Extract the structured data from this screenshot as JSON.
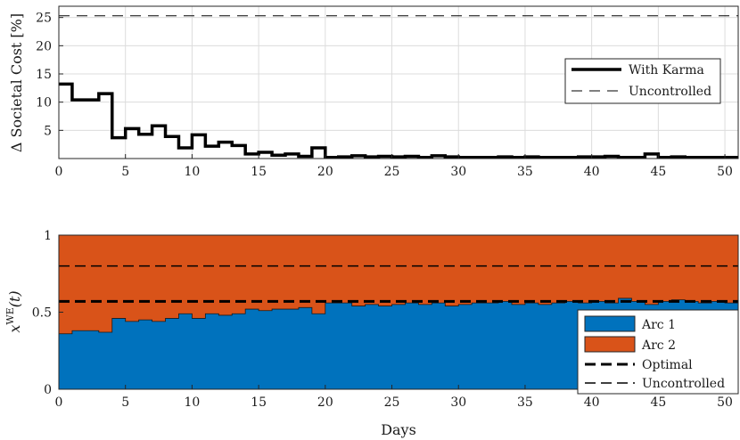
{
  "chart_data": [
    {
      "type": "line",
      "title": "",
      "xlabel": "",
      "ylabel": "Δ Societal Cost [%]",
      "xlim": [
        0,
        51
      ],
      "ylim": [
        0,
        27
      ],
      "xticks": [
        "0",
        "5",
        "10",
        "15",
        "20",
        "25",
        "30",
        "35",
        "40",
        "45",
        "50"
      ],
      "yticks": [
        "5",
        "10",
        "15",
        "20",
        "25"
      ],
      "grid": true,
      "legend_position": "right",
      "series": [
        {
          "name": "With Karma",
          "style": "step",
          "color": "#000000",
          "x": [
            0,
            1,
            2,
            3,
            4,
            5,
            6,
            7,
            8,
            9,
            10,
            11,
            12,
            13,
            14,
            15,
            16,
            17,
            18,
            19,
            20,
            21,
            22,
            23,
            24,
            25,
            26,
            27,
            28,
            29,
            30,
            31,
            32,
            33,
            34,
            35,
            36,
            37,
            38,
            39,
            40,
            41,
            42,
            43,
            44,
            45,
            46,
            47,
            48,
            49,
            50,
            51
          ],
          "values": [
            13.2,
            10.4,
            10.4,
            11.5,
            3.7,
            5.3,
            4.3,
            5.8,
            3.9,
            1.9,
            4.2,
            2.2,
            2.9,
            2.3,
            0.8,
            1.1,
            0.6,
            0.8,
            0.4,
            1.9,
            0.2,
            0.3,
            0.5,
            0.3,
            0.4,
            0.3,
            0.4,
            0.2,
            0.5,
            0.3,
            0.2,
            0.2,
            0.2,
            0.3,
            0.2,
            0.3,
            0.2,
            0.2,
            0.2,
            0.3,
            0.3,
            0.4,
            0.2,
            0.2,
            0.8,
            0.2,
            0.3,
            0.2,
            0.2,
            0.2,
            0.2,
            0.2
          ]
        },
        {
          "name": "Uncontrolled",
          "style": "hline",
          "color": "#000000",
          "value": 25.3
        }
      ]
    },
    {
      "type": "area",
      "title": "",
      "xlabel": "Days",
      "ylabel": "x^WE(t)",
      "xlim": [
        0,
        51
      ],
      "ylim": [
        0,
        1
      ],
      "xticks": [
        "0",
        "5",
        "10",
        "15",
        "20",
        "25",
        "30",
        "35",
        "40",
        "45",
        "50"
      ],
      "yticks": [
        "0",
        "0.5",
        "1"
      ],
      "grid": false,
      "legend_position": "bottom-right",
      "series": [
        {
          "name": "Arc 1",
          "color": "#0072BD",
          "x": [
            0,
            1,
            2,
            3,
            4,
            5,
            6,
            7,
            8,
            9,
            10,
            11,
            12,
            13,
            14,
            15,
            16,
            17,
            18,
            19,
            20,
            21,
            22,
            23,
            24,
            25,
            26,
            27,
            28,
            29,
            30,
            31,
            32,
            33,
            34,
            35,
            36,
            37,
            38,
            39,
            40,
            41,
            42,
            43,
            44,
            45,
            46,
            47,
            48,
            49,
            50,
            51
          ],
          "values": [
            0.36,
            0.38,
            0.38,
            0.37,
            0.46,
            0.44,
            0.45,
            0.44,
            0.46,
            0.49,
            0.46,
            0.49,
            0.48,
            0.49,
            0.52,
            0.51,
            0.52,
            0.52,
            0.53,
            0.49,
            0.56,
            0.56,
            0.54,
            0.55,
            0.54,
            0.55,
            0.56,
            0.55,
            0.56,
            0.54,
            0.55,
            0.56,
            0.56,
            0.57,
            0.55,
            0.56,
            0.55,
            0.56,
            0.57,
            0.56,
            0.57,
            0.56,
            0.59,
            0.57,
            0.55,
            0.57,
            0.58,
            0.57,
            0.56,
            0.57,
            0.56,
            0.56
          ]
        },
        {
          "name": "Arc 2",
          "color": "#D95319",
          "fill_to": 1
        },
        {
          "name": "Optimal",
          "style": "hline",
          "color": "#000000",
          "value": 0.57
        },
        {
          "name": "Uncontrolled",
          "style": "hline",
          "color": "#000000",
          "value": 0.8
        }
      ]
    }
  ]
}
